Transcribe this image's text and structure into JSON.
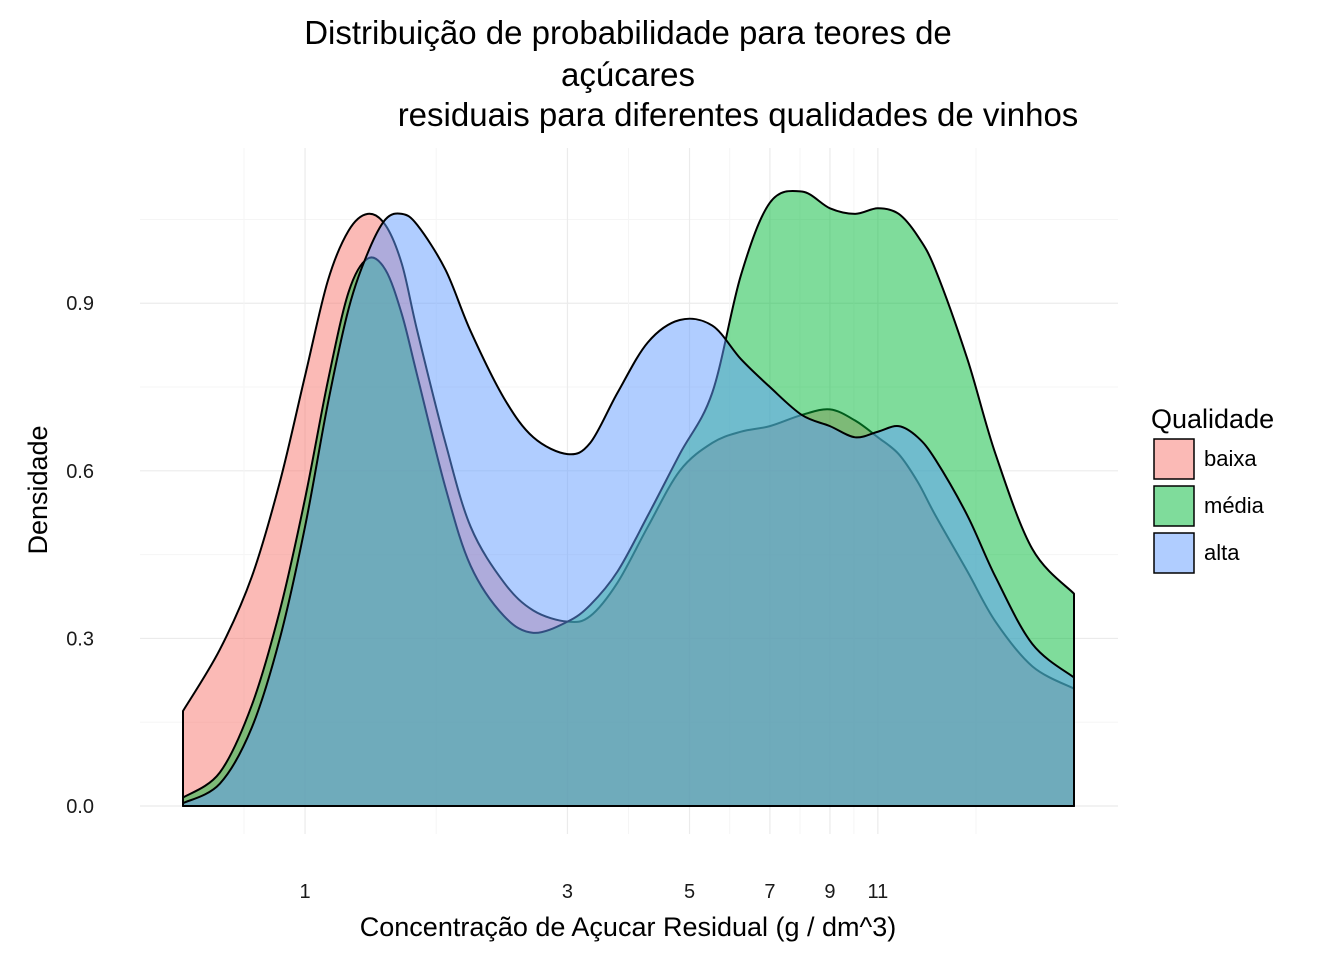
{
  "chart_data": {
    "type": "area",
    "title_lines": [
      "Distribuição de probabilidade para teores de",
      "açúcares",
      "residuais para diferentes qualidades de vinhos"
    ],
    "xlabel": "Concentração de Açucar Residual (g / dm^3)",
    "ylabel": "Densidade",
    "x_scale": "log10",
    "x_ticks": [
      1,
      3,
      5,
      7,
      9,
      11
    ],
    "y_ticks": [
      0.0,
      0.3,
      0.6,
      0.9
    ],
    "y_tick_labels": [
      "0.0",
      "0.3",
      "0.6",
      "0.9"
    ],
    "xlim": [
      0.6,
      25
    ],
    "ylim": [
      0,
      1.16
    ],
    "grid": true,
    "legend": {
      "title": "Qualidade",
      "position": "right"
    },
    "series": [
      {
        "name": "baixa",
        "color": "#f8766d",
        "x": [
          0.6,
          0.7,
          0.8,
          0.9,
          1.0,
          1.1,
          1.2,
          1.3,
          1.4,
          1.5,
          1.6,
          1.8,
          2.0,
          2.3,
          2.6,
          3.0,
          3.3,
          3.7,
          4.2,
          4.8,
          5.5,
          6.2,
          7.0,
          8.0,
          9.0,
          10.0,
          11.0,
          12.0,
          13.0,
          14.0,
          16.0,
          18.0,
          21.0,
          25.0
        ],
        "y": [
          0.17,
          0.28,
          0.41,
          0.58,
          0.77,
          0.94,
          1.03,
          1.06,
          1.04,
          0.97,
          0.85,
          0.65,
          0.5,
          0.4,
          0.35,
          0.33,
          0.34,
          0.4,
          0.5,
          0.6,
          0.65,
          0.67,
          0.68,
          0.7,
          0.71,
          0.69,
          0.66,
          0.63,
          0.58,
          0.52,
          0.42,
          0.33,
          0.25,
          0.21
        ]
      },
      {
        "name": "média",
        "color": "#00ba38",
        "x": [
          0.6,
          0.7,
          0.8,
          0.9,
          1.0,
          1.1,
          1.2,
          1.3,
          1.4,
          1.5,
          1.6,
          1.8,
          2.0,
          2.3,
          2.6,
          3.0,
          3.3,
          3.7,
          4.2,
          4.8,
          5.5,
          6.2,
          7.0,
          8.0,
          9.0,
          10.0,
          11.0,
          12.0,
          13.0,
          14.0,
          16.0,
          18.0,
          21.0,
          25.0
        ],
        "y": [
          0.015,
          0.06,
          0.18,
          0.35,
          0.55,
          0.76,
          0.92,
          0.98,
          0.96,
          0.88,
          0.77,
          0.57,
          0.43,
          0.34,
          0.31,
          0.33,
          0.36,
          0.42,
          0.52,
          0.63,
          0.74,
          0.95,
          1.08,
          1.1,
          1.07,
          1.06,
          1.07,
          1.06,
          1.02,
          0.96,
          0.8,
          0.63,
          0.46,
          0.38
        ]
      },
      {
        "name": "alta",
        "color": "#619cff",
        "x": [
          0.6,
          0.7,
          0.8,
          0.9,
          1.0,
          1.1,
          1.2,
          1.3,
          1.4,
          1.5,
          1.6,
          1.8,
          2.0,
          2.3,
          2.6,
          3.0,
          3.3,
          3.7,
          4.2,
          4.8,
          5.5,
          6.2,
          7.0,
          8.0,
          9.0,
          10.0,
          11.0,
          12.0,
          13.0,
          14.0,
          16.0,
          18.0,
          21.0,
          25.0
        ],
        "y": [
          0.005,
          0.04,
          0.14,
          0.3,
          0.5,
          0.72,
          0.89,
          0.99,
          1.05,
          1.06,
          1.04,
          0.96,
          0.85,
          0.73,
          0.66,
          0.63,
          0.65,
          0.74,
          0.83,
          0.87,
          0.86,
          0.8,
          0.75,
          0.7,
          0.68,
          0.66,
          0.67,
          0.68,
          0.66,
          0.62,
          0.52,
          0.41,
          0.29,
          0.23
        ]
      }
    ]
  }
}
